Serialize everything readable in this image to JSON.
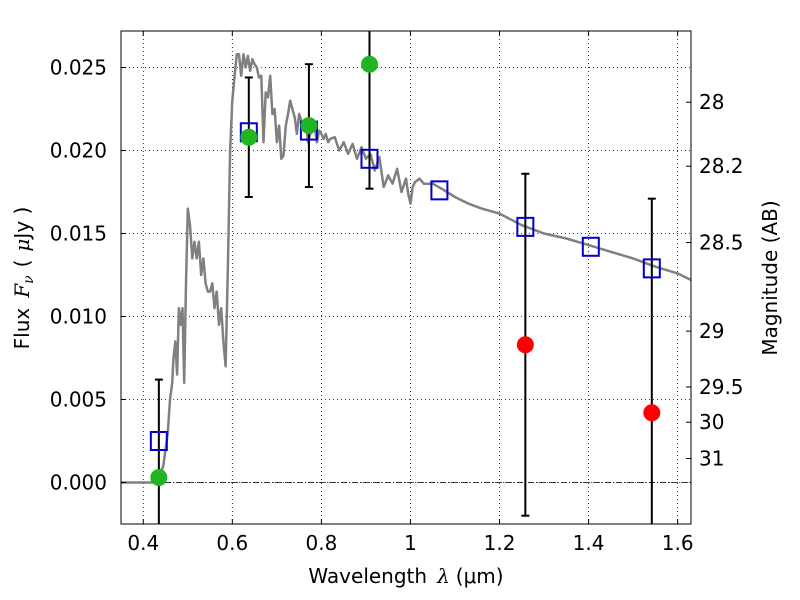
{
  "chart_data": {
    "type": "scatter",
    "xlabel": "Wavelength",
    "xlabel_symbol": "λ",
    "xlabel_unit": "(μm)",
    "ylabel": "Flux",
    "ylabel_symbol": "F",
    "ylabel_subscript": "ν",
    "ylabel_unit_open": "(",
    "ylabel_unit_mu": "μ",
    "ylabel_unit": "Jy )",
    "ylabel_right": "Magnitude (AB)",
    "xlim": [
      0.35,
      1.63
    ],
    "ylim": [
      -0.0025,
      0.0272
    ],
    "grid": true,
    "grid_style": "dotted",
    "x_ticks": [
      0.4,
      0.6,
      0.8,
      1.0,
      1.2,
      1.4,
      1.6
    ],
    "x_tick_labels": [
      "0.4",
      "0.6",
      "0.8",
      "1",
      "1.2",
      "1.4",
      "1.6"
    ],
    "y_ticks": [
      0.0,
      0.005,
      0.01,
      0.015,
      0.02,
      0.025
    ],
    "y_tick_labels": [
      "0.000",
      "0.005",
      "0.010",
      "0.015",
      "0.020",
      "0.025"
    ],
    "right_ticks": [
      {
        "mag": 28,
        "label": "28"
      },
      {
        "mag": 28.2,
        "label": "28.2"
      },
      {
        "mag": 28.5,
        "label": "28.5"
      },
      {
        "mag": 29,
        "label": "29"
      },
      {
        "mag": 29.5,
        "label": "29.5"
      },
      {
        "mag": 30,
        "label": "30"
      },
      {
        "mag": 31,
        "label": "31"
      }
    ],
    "zero_line": 0.0,
    "colors": {
      "sed_line": "#808080",
      "model_box": "#0000cc",
      "detection": "#22b522",
      "upper_limit": "#ff0000",
      "errorbar": "#000000",
      "zero_line": "#000000"
    },
    "series": [
      {
        "kind": "line",
        "x": [
          0.35,
          0.39,
          0.41,
          0.43,
          0.445,
          0.455,
          0.46,
          0.465,
          0.468,
          0.472,
          0.476,
          0.48,
          0.484,
          0.488,
          0.492,
          0.496,
          0.5,
          0.505,
          0.51,
          0.515,
          0.52,
          0.525,
          0.53,
          0.535,
          0.54,
          0.545,
          0.55,
          0.555,
          0.56,
          0.565,
          0.57,
          0.575,
          0.58,
          0.585,
          0.59,
          0.595,
          0.6,
          0.605,
          0.61,
          0.615,
          0.62,
          0.625,
          0.63,
          0.635,
          0.64,
          0.645,
          0.65,
          0.655,
          0.66,
          0.665,
          0.67,
          0.675,
          0.68,
          0.685,
          0.69,
          0.695,
          0.7,
          0.705,
          0.71,
          0.715,
          0.72,
          0.725,
          0.73,
          0.735,
          0.74,
          0.745,
          0.75,
          0.755,
          0.76,
          0.765,
          0.77,
          0.775,
          0.78,
          0.785,
          0.79,
          0.795,
          0.8,
          0.805,
          0.81,
          0.815,
          0.82,
          0.83,
          0.84,
          0.85,
          0.86,
          0.87,
          0.88,
          0.89,
          0.9,
          0.91,
          0.92,
          0.93,
          0.94,
          0.95,
          0.96,
          0.97,
          0.98,
          0.99,
          0.995,
          1.0,
          1.005,
          1.01,
          1.02,
          1.03,
          1.05,
          1.07,
          1.1,
          1.13,
          1.16,
          1.2,
          1.25,
          1.3,
          1.35,
          1.4,
          1.45,
          1.5,
          1.55,
          1.6,
          1.63
        ],
        "y": [
          0.0,
          0.0,
          0.0,
          0.0,
          0.001,
          0.003,
          0.005,
          0.006,
          0.0075,
          0.0085,
          0.0065,
          0.0105,
          0.0095,
          0.0105,
          0.006,
          0.012,
          0.0165,
          0.0155,
          0.0135,
          0.0145,
          0.0135,
          0.0145,
          0.0125,
          0.0135,
          0.012,
          0.0115,
          0.0115,
          0.012,
          0.0105,
          0.0115,
          0.0095,
          0.0105,
          0.0085,
          0.007,
          0.013,
          0.02,
          0.023,
          0.0245,
          0.0258,
          0.0258,
          0.0245,
          0.0258,
          0.025,
          0.0257,
          0.0248,
          0.0255,
          0.0252,
          0.025,
          0.0244,
          0.0245,
          0.0205,
          0.0235,
          0.0232,
          0.0245,
          0.0222,
          0.0225,
          0.0205,
          0.0215,
          0.0195,
          0.0197,
          0.0215,
          0.0222,
          0.023,
          0.0225,
          0.022,
          0.021,
          0.0222,
          0.0218,
          0.0215,
          0.0218,
          0.0205,
          0.021,
          0.0218,
          0.0215,
          0.0205,
          0.0212,
          0.021,
          0.0207,
          0.021,
          0.0205,
          0.0207,
          0.0208,
          0.02,
          0.0205,
          0.0198,
          0.0204,
          0.0195,
          0.0202,
          0.0195,
          0.0198,
          0.0188,
          0.0196,
          0.0178,
          0.0185,
          0.018,
          0.0189,
          0.0175,
          0.0183,
          0.0174,
          0.0168,
          0.0178,
          0.0181,
          0.0183,
          0.018,
          0.018,
          0.0177,
          0.0172,
          0.0168,
          0.0165,
          0.0162,
          0.0155,
          0.015,
          0.0147,
          0.0143,
          0.0139,
          0.0135,
          0.013,
          0.0126,
          0.0122
        ]
      },
      {
        "kind": "box",
        "x": [
          0.435,
          0.637,
          0.772,
          0.908,
          1.065,
          1.258,
          1.405,
          1.542
        ],
        "y": [
          0.0025,
          0.0211,
          0.0212,
          0.0195,
          0.0176,
          0.0154,
          0.0142,
          0.0129
        ]
      },
      {
        "kind": "detection",
        "x": [
          0.435,
          0.637,
          0.772,
          0.908
        ],
        "y": [
          0.0003,
          0.0208,
          0.0215,
          0.0252
        ],
        "yerr": [
          0.0059,
          0.0036,
          0.0037,
          0.0075
        ]
      },
      {
        "kind": "upper_limit",
        "x": [
          1.258,
          1.542
        ],
        "y": [
          0.0083,
          0.0042
        ],
        "yerr": [
          0.0103,
          0.0129
        ]
      }
    ]
  }
}
